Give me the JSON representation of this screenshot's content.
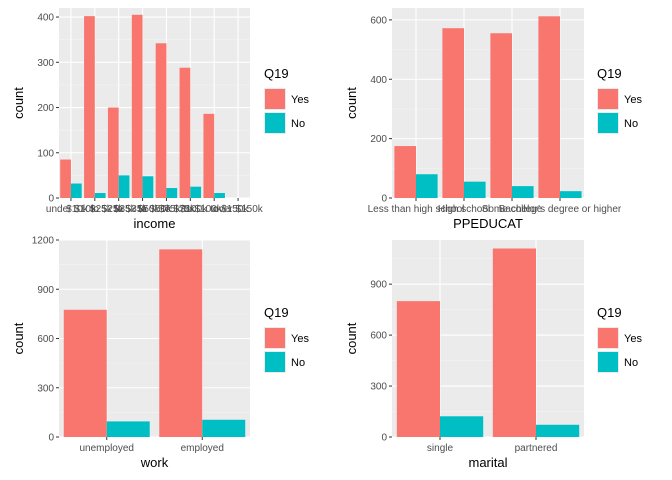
{
  "colors": {
    "Yes": "#f8766d",
    "No": "#00bfc4",
    "panel": "#ebebeb",
    "grid_major": "#ffffff",
    "grid_minor": "#f4f4f4"
  },
  "chart_data": [
    {
      "type": "bar",
      "xlabel": "income",
      "ylabel": "count",
      "categories": [
        "under $10k",
        "$10k to $25k",
        "$25k to $35k",
        "$35k to $50k",
        "$50k to $75k",
        "$75k to $100k",
        "$100k to $150k",
        "over $150k"
      ],
      "series": [
        {
          "name": "Yes",
          "values": [
            85,
            402,
            200,
            405,
            342,
            288,
            186,
            0
          ]
        },
        {
          "name": "No",
          "values": [
            32,
            11,
            50,
            48,
            22,
            25,
            11,
            0
          ]
        }
      ],
      "ylim": [
        0,
        420
      ],
      "yticks": [
        0,
        100,
        200,
        300,
        400
      ],
      "legend": {
        "title": "Q19",
        "labels": [
          "Yes",
          "No"
        ],
        "placement": "right"
      }
    },
    {
      "type": "bar",
      "xlabel": "PPEDUCAT",
      "ylabel": "count",
      "categories": [
        "Less than high school",
        "High school",
        "Some college",
        "Bachelor's degree or higher"
      ],
      "series": [
        {
          "name": "Yes",
          "values": [
            175,
            572,
            555,
            612
          ]
        },
        {
          "name": "No",
          "values": [
            80,
            55,
            40,
            23
          ]
        }
      ],
      "ylim": [
        0,
        640
      ],
      "yticks": [
        0,
        200,
        400,
        600
      ],
      "legend": {
        "title": "Q19",
        "labels": [
          "Yes",
          "No"
        ],
        "placement": "right"
      }
    },
    {
      "type": "bar",
      "xlabel": "work",
      "ylabel": "count",
      "categories": [
        "unemployed",
        "employed"
      ],
      "series": [
        {
          "name": "Yes",
          "values": [
            775,
            1143
          ]
        },
        {
          "name": "No",
          "values": [
            95,
            105
          ]
        }
      ],
      "ylim": [
        0,
        1200
      ],
      "yticks": [
        0,
        300,
        600,
        900,
        1200
      ],
      "legend": {
        "title": "Q19",
        "labels": [
          "Yes",
          "No"
        ],
        "placement": "right"
      }
    },
    {
      "type": "bar",
      "xlabel": "marital",
      "ylabel": "count",
      "categories": [
        "single",
        "partnered"
      ],
      "series": [
        {
          "name": "Yes",
          "values": [
            800,
            1110
          ]
        },
        {
          "name": "No",
          "values": [
            122,
            72
          ]
        }
      ],
      "ylim": [
        0,
        1160
      ],
      "yticks": [
        0,
        300,
        600,
        900
      ],
      "legend": {
        "title": "Q19",
        "labels": [
          "Yes",
          "No"
        ],
        "placement": "right"
      }
    }
  ]
}
